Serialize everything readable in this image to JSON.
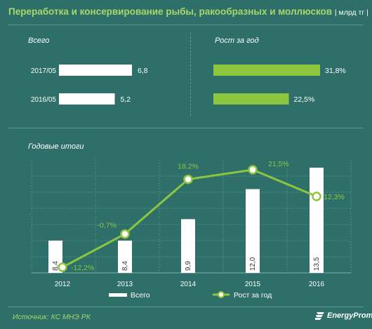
{
  "title": "Переработка и консервирование рыбы, ракообразных и моллюсков",
  "unit": "| млрд тг |",
  "source": "Источник: КС МНЭ РК",
  "logo_text": "EnergyProm",
  "colors": {
    "background": "#2e6f69",
    "accent_green": "#8cc63f",
    "title_green": "#a8d86a",
    "bar_white": "#ffffff"
  },
  "chart_data": [
    {
      "type": "bar",
      "orientation": "horizontal",
      "title": "Всего",
      "categories": [
        "2017/05",
        "2016/05"
      ],
      "values": [
        6.8,
        5.2
      ],
      "value_labels": [
        "6,8",
        "5,2"
      ],
      "color": "#ffffff"
    },
    {
      "type": "bar",
      "orientation": "horizontal",
      "title": "Рост за год",
      "categories": [
        "2017/05",
        "2016/05"
      ],
      "values": [
        31.8,
        22.5
      ],
      "value_labels": [
        "31,8%",
        "22,5%"
      ],
      "color": "#8cc63f"
    },
    {
      "type": "bar+line",
      "title": "Годовые итоги",
      "categories": [
        "2012",
        "2013",
        "2014",
        "2015",
        "2016"
      ],
      "series": [
        {
          "name": "Всего",
          "type": "bar",
          "values": [
            8.4,
            8.4,
            9.9,
            12.0,
            13.5
          ],
          "labels": [
            "8,4",
            "8,4",
            "9,9",
            "12,0",
            "13,5"
          ],
          "color": "#ffffff"
        },
        {
          "name": "Рост за год",
          "type": "line",
          "values": [
            -12.2,
            -0.7,
            18.2,
            21.5,
            12.3
          ],
          "labels": [
            "-12,2%",
            "-0,7%",
            "18,2%",
            "21,5%",
            "12,3%"
          ],
          "color": "#8cc63f"
        }
      ],
      "legend_position": "bottom",
      "grid": true
    }
  ]
}
